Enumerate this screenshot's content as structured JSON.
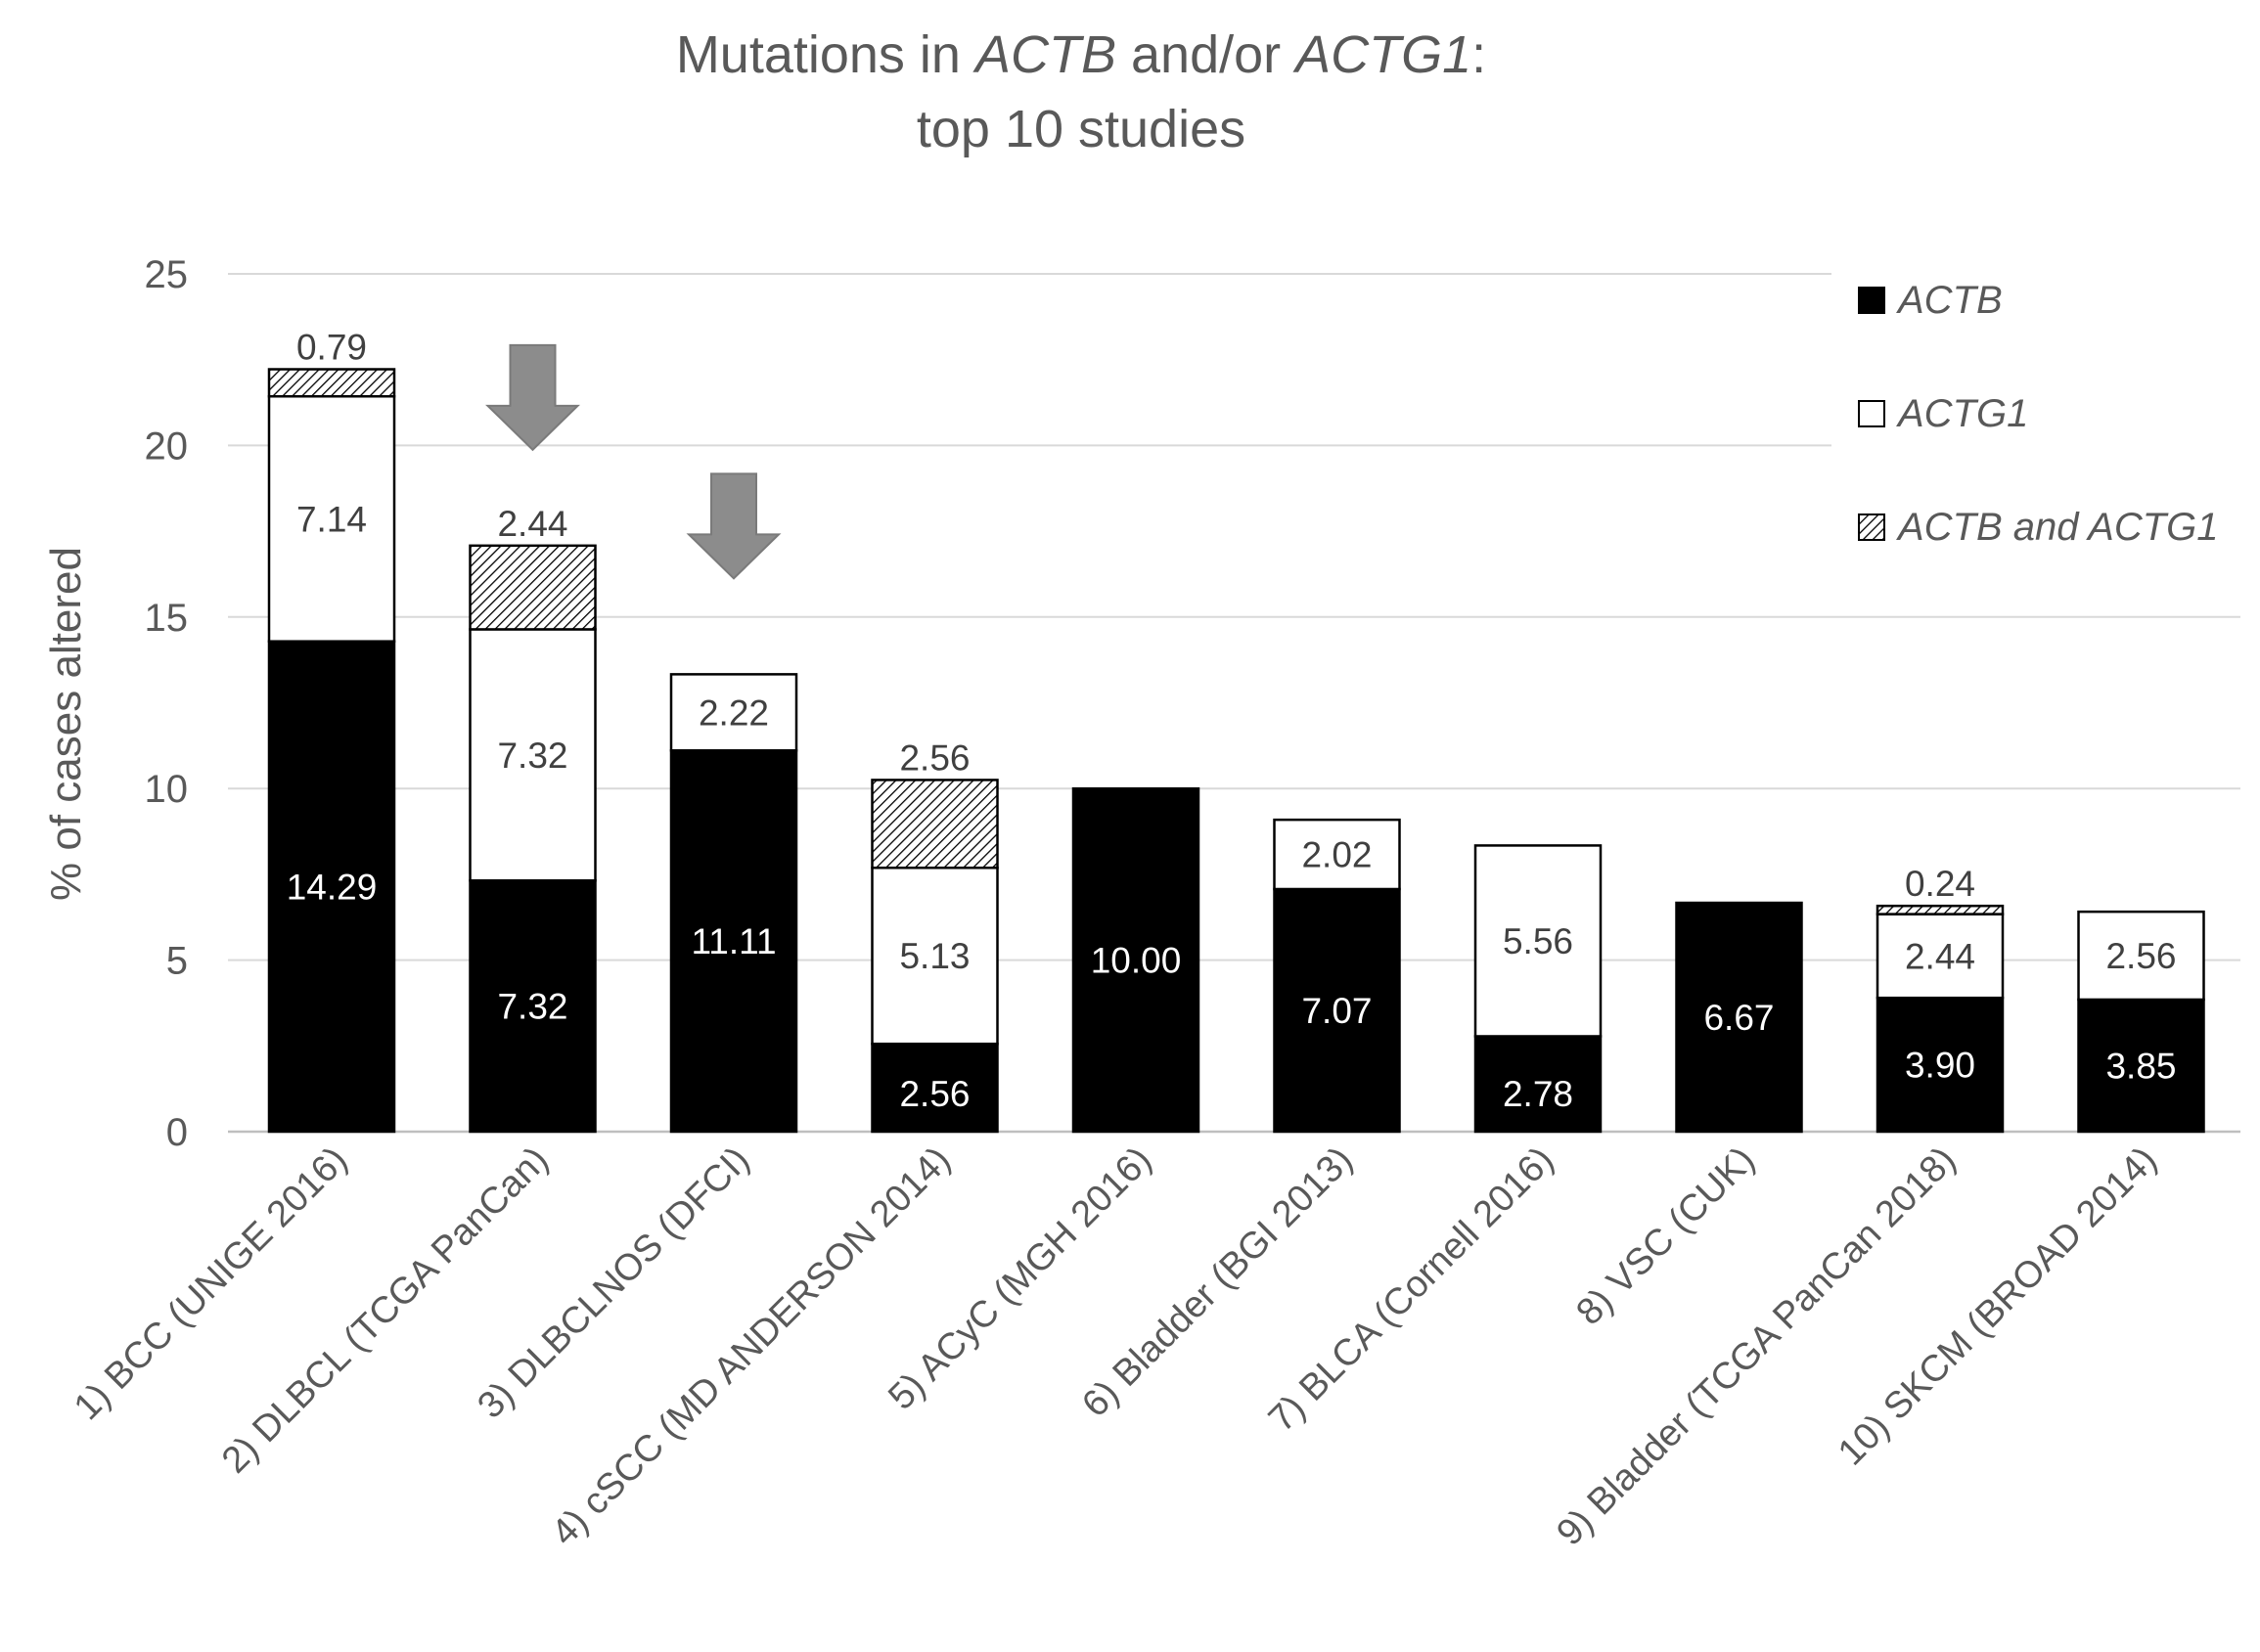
{
  "chart_data": {
    "type": "bar",
    "stacked": true,
    "title": {
      "parts": [
        {
          "text": "Mutations in ",
          "italic": false
        },
        {
          "text": "ACTB",
          "italic": true
        },
        {
          "text": " and/or ",
          "italic": false
        },
        {
          "text": "ACTG1",
          "italic": true
        },
        {
          "text": ":",
          "italic": false
        }
      ],
      "line2": "top 10 studies"
    },
    "ylabel": "% of cases altered",
    "xlabel": "",
    "ylim": [
      0,
      25
    ],
    "yticks": [
      "0",
      "5",
      "10",
      "15",
      "20",
      "25"
    ],
    "gridlines": true,
    "legend_position": "top-right",
    "categories": [
      "1) BCC (UNIGE 2016)",
      "2) DLBCL (TCGA PanCan)",
      "3) DLBCLNOS (DFCI)",
      "4) cSCC (MD ANDERSON 2014)",
      "5) ACyC (MGH 2016)",
      "6) Bladder (BGI 2013)",
      "7) BLCA (Cornell 2016)",
      "8) VSC (CUK)",
      "9) Bladder (TCGA PanCan 2018)",
      "10) SKCM (BROAD 2014)"
    ],
    "series": [
      {
        "name": "ACTB",
        "style": "solid-black",
        "values": [
          14.29,
          7.32,
          11.11,
          2.56,
          10.0,
          7.07,
          2.78,
          6.67,
          3.9,
          3.85
        ],
        "labels": [
          "14.29",
          "7.32",
          "11.11",
          "2.56",
          "10.00",
          "7.07",
          "2.78",
          "6.67",
          "3.90",
          "3.85"
        ]
      },
      {
        "name": "ACTG1",
        "style": "white",
        "values": [
          7.14,
          7.32,
          2.22,
          5.13,
          0,
          2.02,
          5.56,
          0,
          2.44,
          2.56
        ],
        "labels": [
          "7.14",
          "7.32",
          "2.22",
          "5.13",
          "",
          "2.02",
          "5.56",
          "",
          "2.44",
          "2.56"
        ]
      },
      {
        "name": "ACTB and ACTG1",
        "style": "hatched",
        "values": [
          0.79,
          2.44,
          0,
          2.56,
          0,
          0,
          0,
          0,
          0.24,
          0
        ],
        "labels": [
          "0.79",
          "2.44",
          "",
          "2.56",
          "",
          "",
          "",
          "",
          "0.24",
          ""
        ]
      }
    ],
    "annotations": [
      {
        "type": "down-arrow",
        "category_index": 1
      },
      {
        "type": "down-arrow",
        "category_index": 2
      }
    ],
    "colors": {
      "text": "#595959",
      "grid": "#d9d9d9",
      "bar_dark": "#000000",
      "bar_light": "#ffffff",
      "arrow": "#8c8c8c"
    }
  }
}
